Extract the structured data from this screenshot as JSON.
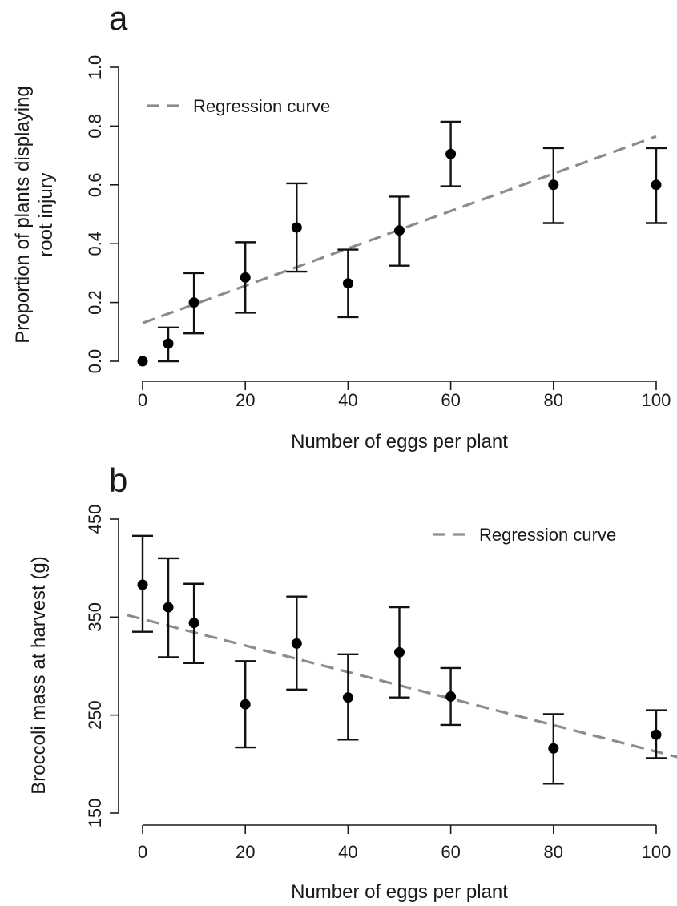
{
  "chart_data": [
    {
      "panel": "a",
      "type": "scatter",
      "xlabel": "Number of eggs per plant",
      "ylabel_lines": [
        "Proportion of plants displaying",
        "root injury"
      ],
      "xlim": [
        0,
        100
      ],
      "ylim": [
        0,
        1
      ],
      "xticks": [
        0,
        20,
        40,
        60,
        80,
        100
      ],
      "xtick_labels": [
        "0",
        "20",
        "40",
        "60",
        "80",
        "100"
      ],
      "yticks": [
        0,
        0.2,
        0.4,
        0.6,
        0.8,
        1
      ],
      "ytick_labels": [
        "0.0",
        "0.2",
        "0.4",
        "0.6",
        "0.8",
        "1.0"
      ],
      "grid": false,
      "legend": {
        "label": "Regression curve",
        "position": "top-left",
        "style": "dashed grey line"
      },
      "series": [
        {
          "kind": "points-with-error-bars",
          "x": [
            0,
            5,
            10,
            20,
            30,
            40,
            50,
            60,
            80,
            100
          ],
          "y": [
            0.0,
            0.06,
            0.2,
            0.285,
            0.455,
            0.265,
            0.445,
            0.705,
            0.6,
            0.6
          ],
          "lower": [
            0.0,
            0.0,
            0.095,
            0.165,
            0.305,
            0.15,
            0.325,
            0.595,
            0.47,
            0.47
          ],
          "upper": [
            0.0,
            0.115,
            0.3,
            0.405,
            0.605,
            0.38,
            0.56,
            0.815,
            0.725,
            0.725
          ]
        },
        {
          "kind": "regression",
          "name": "Regression curve",
          "x": [
            0,
            100
          ],
          "y": [
            0.13,
            0.765
          ]
        }
      ]
    },
    {
      "panel": "b",
      "type": "scatter",
      "xlabel": "Number of eggs per plant",
      "ylabel_lines": [
        "Broccoli mass at harvest (g)"
      ],
      "xlim": [
        0,
        100
      ],
      "ylim": [
        150,
        450
      ],
      "xticks": [
        0,
        20,
        40,
        60,
        80,
        100
      ],
      "xtick_labels": [
        "0",
        "20",
        "40",
        "60",
        "80",
        "100"
      ],
      "yticks": [
        150,
        250,
        350,
        450
      ],
      "ytick_labels": [
        "150",
        "250",
        "350",
        "450"
      ],
      "grid": false,
      "legend": {
        "label": "Regression curve",
        "position": "top-right",
        "style": "dashed grey line"
      },
      "series": [
        {
          "kind": "points-with-error-bars",
          "x": [
            0,
            5,
            10,
            20,
            30,
            40,
            50,
            60,
            80,
            100
          ],
          "y": [
            383,
            360,
            344,
            261,
            323,
            268,
            314,
            269,
            216,
            230
          ],
          "lower": [
            335,
            309,
            303,
            217,
            276,
            225,
            268,
            240,
            180,
            206
          ],
          "upper": [
            433,
            410,
            384,
            305,
            371,
            312,
            360,
            298,
            251,
            255
          ]
        },
        {
          "kind": "regression",
          "name": "Regression curve",
          "x": [
            -3,
            105
          ],
          "y": [
            352,
            206
          ]
        }
      ]
    }
  ]
}
